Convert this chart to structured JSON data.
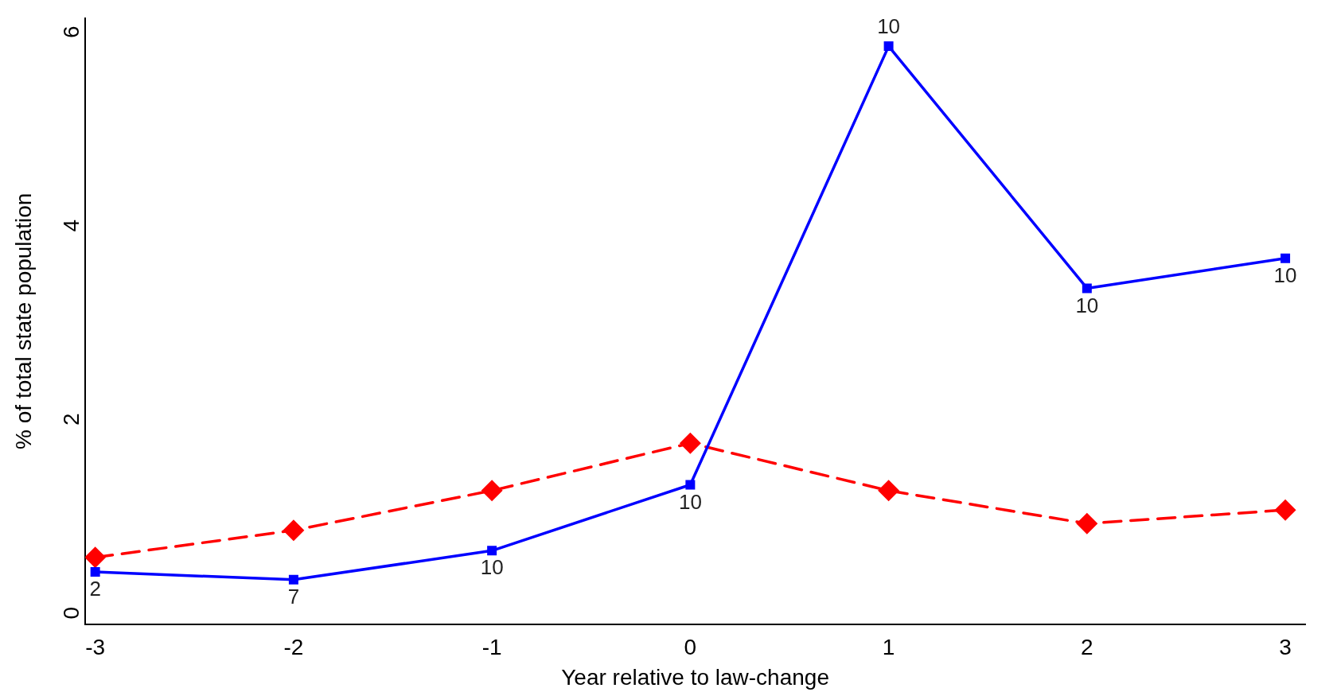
{
  "chart_data": {
    "type": "line",
    "xlabel": "Year relative to law-change",
    "ylabel": "% of total state population",
    "x": [
      -3,
      -2,
      -1,
      0,
      1,
      2,
      3
    ],
    "xlim": [
      -3.05,
      3.1
    ],
    "xticks": [
      -3,
      -2,
      -1,
      0,
      1,
      2,
      3
    ],
    "ylim": [
      -0.18,
      6.08
    ],
    "yticks": [
      0,
      2,
      4,
      6
    ],
    "grid": false,
    "legend": false,
    "annotations": [
      {
        "text": "2",
        "x": -3,
        "y": 0.36
      },
      {
        "text": "7",
        "x": -2,
        "y": 0.28
      },
      {
        "text": "10",
        "x": -1,
        "y": 0.58
      },
      {
        "text": "10",
        "x": 0,
        "y": 1.26
      },
      {
        "text": "10",
        "x": 1,
        "y": 5.79
      },
      {
        "text": "10",
        "x": 2,
        "y": 3.29
      },
      {
        "text": "10",
        "x": 3,
        "y": 3.6
      }
    ],
    "series": [
      {
        "color": "#0000ff",
        "marker": "square",
        "line_style": "solid",
        "values": [
          0.36,
          0.28,
          0.58,
          1.26,
          5.79,
          3.29,
          3.6
        ]
      },
      {
        "color": "#ff0000",
        "marker": "diamond",
        "line_style": "dashed",
        "values": [
          0.51,
          0.79,
          1.2,
          1.69,
          1.2,
          0.86,
          1.0
        ]
      }
    ]
  }
}
